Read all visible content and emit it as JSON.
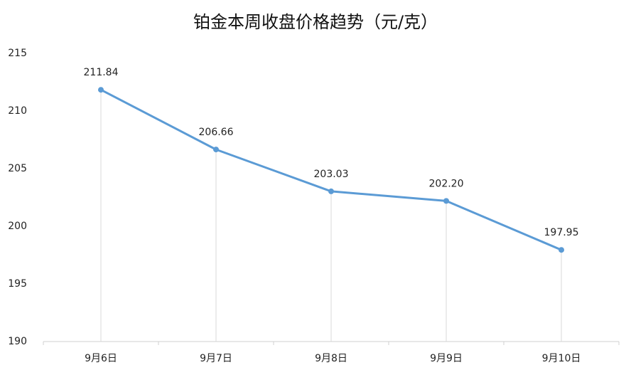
{
  "chart_data": {
    "type": "line",
    "title": "铂金本周收盘价格趋势（元/克）",
    "categories": [
      "9月6日",
      "9月7日",
      "9月8日",
      "9月9日",
      "9月10日"
    ],
    "values": [
      211.84,
      206.66,
      203.03,
      202.2,
      197.95
    ],
    "value_labels": [
      "211.84",
      "206.66",
      "203.03",
      "202.20",
      "197.95"
    ],
    "color": "#5b9bd5",
    "ylim": [
      190,
      215
    ],
    "yticks": [
      190,
      195,
      200,
      205,
      210,
      215
    ],
    "drop_lines": true
  }
}
